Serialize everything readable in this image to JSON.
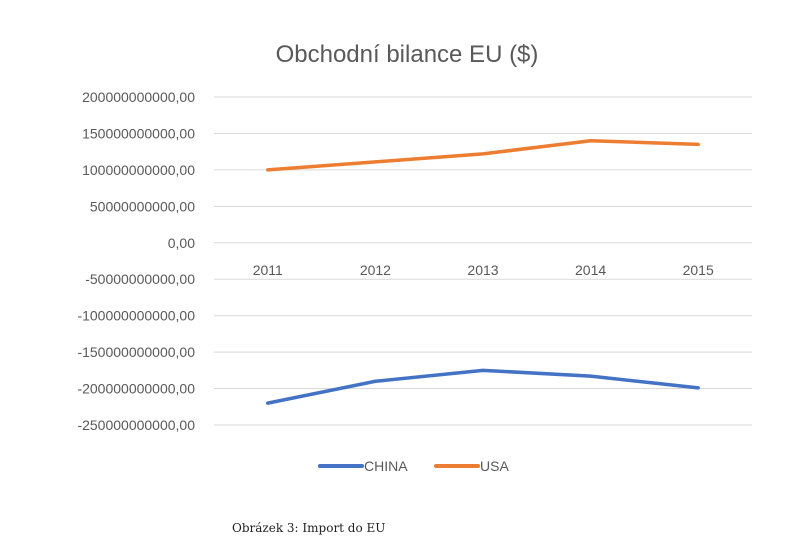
{
  "chart_data": {
    "type": "line",
    "title": "Obchodní bilance EU ($)",
    "xlabel": "",
    "ylabel": "",
    "categories": [
      "2011",
      "2012",
      "2013",
      "2014",
      "2015"
    ],
    "series": [
      {
        "name": "CHINA",
        "color": "#4472C4",
        "values": [
          -220000000000,
          -190000000000,
          -175000000000,
          -183000000000,
          -199000000000
        ]
      },
      {
        "name": "USA",
        "color": "#ED7D31",
        "values": [
          100000000000,
          111000000000,
          122000000000,
          140000000000,
          135000000000
        ]
      }
    ],
    "ylim": [
      -250000000000,
      200000000000
    ],
    "yticks": [
      200000000000,
      150000000000,
      100000000000,
      50000000000,
      0,
      -50000000000,
      -100000000000,
      -150000000000,
      -200000000000,
      -250000000000
    ],
    "ytick_labels": [
      "200000000000,00",
      "150000000000,00",
      "100000000000,00",
      "50000000000,00",
      "0,00",
      "-50000000000,00",
      "-100000000000,00",
      "-150000000000,00",
      "-200000000000,00",
      "-250000000000,00"
    ],
    "grid": true,
    "legend": "bottom"
  },
  "caption": "Obrázek 3: Import do EU"
}
